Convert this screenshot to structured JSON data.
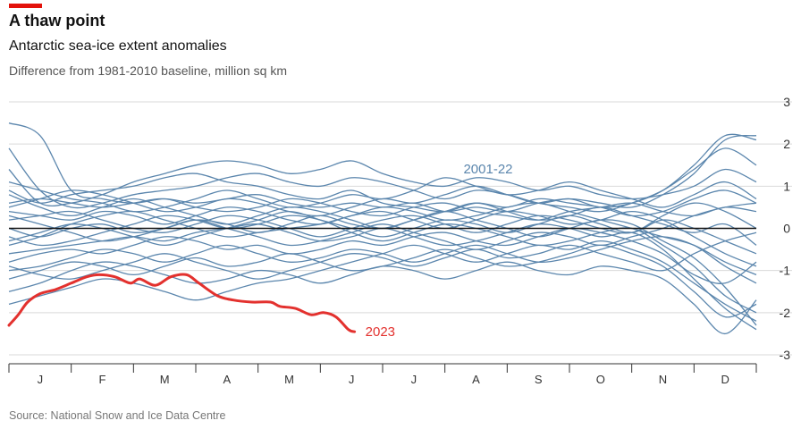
{
  "header": {
    "title": "A thaw point",
    "subtitle": "Antarctic sea-ice extent anomalies",
    "units": "Difference from 1981-2010 baseline, million sq km"
  },
  "footer": {
    "source": "Source: National Snow and Ice Data Centre"
  },
  "colors": {
    "accent": "#e3120b",
    "history": "#5b86ad",
    "current": "#e3312e",
    "zero_line": "#121212",
    "grid": "#d9d9d9"
  },
  "chart_data": {
    "type": "line",
    "title": "A thaw point",
    "subtitle": "Antarctic sea-ice extent anomalies",
    "ylabel": "Difference from 1981-2010 baseline, million sq km",
    "ylim": [
      -3,
      3
    ],
    "yticks": [
      -3,
      -2,
      -1,
      0,
      1,
      2,
      3
    ],
    "ytick_labels": [
      "-3",
      "-2",
      "-1",
      "0",
      "1",
      "2",
      "3"
    ],
    "xlim": [
      0,
      12
    ],
    "months": [
      "J",
      "F",
      "M",
      "A",
      "M",
      "J",
      "J",
      "A",
      "S",
      "O",
      "N",
      "D"
    ],
    "grid": true,
    "series": [
      {
        "name": "2023",
        "x": [
          0,
          0.15,
          0.3,
          0.5,
          0.75,
          1.0,
          1.25,
          1.45,
          1.7,
          1.95,
          2.1,
          2.35,
          2.6,
          2.85,
          3.05,
          3.35,
          3.6,
          3.9,
          4.2,
          4.35,
          4.6,
          4.85,
          5.05,
          5.25,
          5.45,
          5.55
        ],
        "y": [
          -2.3,
          -2.05,
          -1.75,
          -1.55,
          -1.45,
          -1.3,
          -1.15,
          -1.1,
          -1.15,
          -1.3,
          -1.2,
          -1.35,
          -1.15,
          -1.1,
          -1.3,
          -1.6,
          -1.7,
          -1.75,
          -1.75,
          -1.85,
          -1.9,
          -2.05,
          -2.0,
          -2.1,
          -2.4,
          -2.45
        ]
      },
      {
        "name": "2001-22",
        "years": [
          2001,
          2002,
          2003,
          2004,
          2005,
          2006,
          2007,
          2008,
          2009,
          2010,
          2011,
          2012,
          2013,
          2014,
          2015,
          2016,
          2017,
          2018,
          2019,
          2020,
          2021,
          2022
        ],
        "x": [
          0,
          0.5,
          1,
          1.5,
          2,
          2.5,
          3,
          3.5,
          4,
          4.5,
          5,
          5.5,
          6,
          6.5,
          7,
          7.5,
          8,
          8.5,
          9,
          9.5,
          10,
          10.5,
          11,
          11.5,
          12
        ],
        "y": [
          [
            2.5,
            2.2,
            0.9,
            0.7,
            0.6,
            0.7,
            0.6,
            0.7,
            0.8,
            0.6,
            0.5,
            0.6,
            0.5,
            0.6,
            0.4,
            0.5,
            0.4,
            0.6,
            0.7,
            0.6,
            0.5,
            0.8,
            1.3,
            2.1,
            2.2
          ],
          [
            1.9,
            0.9,
            0.5,
            0.6,
            0.8,
            0.9,
            1.0,
            1.2,
            1.3,
            1.1,
            1.0,
            1.2,
            1.1,
            0.9,
            0.7,
            0.9,
            0.8,
            0.6,
            0.5,
            0.4,
            0.6,
            0.9,
            1.4,
            1.9,
            1.5
          ],
          [
            1.4,
            0.6,
            0.6,
            0.8,
            1.1,
            1.3,
            1.5,
            1.6,
            1.5,
            1.3,
            1.4,
            1.6,
            1.3,
            1.1,
            1.0,
            1.2,
            1.1,
            0.9,
            1.0,
            0.8,
            0.7,
            0.8,
            1.0,
            1.4,
            1.1
          ],
          [
            0.9,
            0.6,
            0.8,
            0.9,
            1.0,
            1.2,
            1.3,
            1.1,
            1.0,
            0.8,
            0.7,
            0.9,
            0.6,
            0.5,
            0.4,
            0.6,
            0.5,
            0.7,
            0.6,
            0.5,
            0.3,
            0.4,
            0.7,
            0.9,
            0.6
          ],
          [
            0.6,
            0.7,
            0.6,
            0.5,
            0.6,
            0.7,
            0.5,
            0.4,
            0.5,
            0.7,
            0.6,
            0.4,
            0.3,
            0.5,
            0.6,
            0.4,
            0.3,
            0.2,
            0.4,
            0.5,
            0.6,
            0.4,
            0.3,
            0.5,
            0.4
          ],
          [
            0.4,
            0.3,
            0.2,
            0.4,
            0.3,
            0.1,
            0.3,
            0.5,
            0.4,
            0.2,
            0.1,
            0.3,
            0.4,
            0.2,
            0.0,
            0.2,
            0.4,
            0.3,
            0.1,
            0.2,
            0.4,
            0.2,
            -0.2,
            -0.6,
            -0.9
          ],
          [
            0.2,
            0.3,
            0.4,
            0.2,
            0.0,
            -0.1,
            0.1,
            0.3,
            0.2,
            0.0,
            -0.2,
            0.0,
            0.2,
            0.3,
            0.1,
            -0.1,
            0.1,
            0.3,
            0.2,
            0.0,
            -0.1,
            0.3,
            0.6,
            0.4,
            0.0
          ],
          [
            0.0,
            -0.2,
            0.0,
            0.1,
            -0.1,
            0.0,
            0.2,
            0.1,
            -0.1,
            0.1,
            0.3,
            0.1,
            0.0,
            0.2,
            0.4,
            0.2,
            0.0,
            -0.2,
            0.0,
            0.2,
            0.1,
            -0.3,
            -0.7,
            -1.4,
            -2.3
          ],
          [
            -0.2,
            -0.4,
            -0.3,
            -0.1,
            0.1,
            0.3,
            0.2,
            0.0,
            0.1,
            0.3,
            0.2,
            -0.1,
            -0.3,
            -0.1,
            0.1,
            0.0,
            -0.2,
            -0.4,
            -0.3,
            -0.1,
            0.0,
            -0.4,
            -0.9,
            -1.6,
            -2.0
          ],
          [
            -0.4,
            -0.2,
            0.1,
            0.3,
            0.4,
            0.2,
            0.0,
            -0.2,
            -0.1,
            0.0,
            0.1,
            0.3,
            0.5,
            0.4,
            0.2,
            0.3,
            0.5,
            0.6,
            0.4,
            0.2,
            0.0,
            -0.2,
            -0.4,
            -0.8,
            -1.1
          ],
          [
            -0.6,
            -0.5,
            -0.4,
            -0.3,
            -0.2,
            -0.3,
            -0.1,
            0.0,
            0.1,
            -0.1,
            -0.3,
            -0.2,
            0.0,
            -0.2,
            -0.4,
            -0.3,
            -0.1,
            0.1,
            0.0,
            -0.2,
            -0.1,
            -0.5,
            -1.2,
            -1.9,
            -2.4
          ],
          [
            -0.8,
            -0.6,
            -0.5,
            -0.6,
            -0.4,
            -0.2,
            -0.3,
            -0.5,
            -0.4,
            -0.6,
            -0.5,
            -0.3,
            -0.4,
            -0.2,
            -0.1,
            -0.3,
            -0.4,
            -0.2,
            0.0,
            -0.1,
            -0.3,
            -0.6,
            -1.1,
            -1.3,
            -0.8
          ],
          [
            -1.0,
            -0.9,
            -0.7,
            -0.5,
            -0.6,
            -0.8,
            -0.6,
            -0.4,
            -0.6,
            -0.8,
            -0.7,
            -0.5,
            -0.6,
            -0.8,
            -0.6,
            -0.4,
            -0.6,
            -0.8,
            -0.7,
            -0.5,
            -0.3,
            -0.2,
            -0.4,
            -0.9,
            -1.3
          ],
          [
            -1.2,
            -1.0,
            -0.8,
            -0.9,
            -1.1,
            -0.9,
            -0.7,
            -0.9,
            -0.8,
            -0.6,
            -0.8,
            -1.0,
            -0.9,
            -0.7,
            -0.5,
            -0.7,
            -0.9,
            -0.8,
            -0.6,
            -0.4,
            -0.6,
            -0.9,
            -1.5,
            -2.1,
            -1.8
          ],
          [
            -1.5,
            -1.3,
            -1.0,
            -0.8,
            -0.9,
            -1.1,
            -1.3,
            -1.2,
            -1.0,
            -1.1,
            -1.3,
            -1.1,
            -0.9,
            -1.0,
            -1.2,
            -1.0,
            -0.8,
            -1.0,
            -1.1,
            -0.9,
            -1.0,
            -1.2,
            -1.8,
            -2.5,
            -1.7
          ],
          [
            -1.8,
            -1.6,
            -1.4,
            -1.2,
            -1.3,
            -1.5,
            -1.7,
            -1.5,
            -1.3,
            -1.2,
            -1.0,
            -0.8,
            -0.6,
            -0.4,
            -0.6,
            -0.8,
            -0.6,
            -0.4,
            -0.5,
            -0.3,
            -0.5,
            -0.8,
            -1.3,
            -1.8,
            -2.2
          ],
          [
            0.8,
            0.5,
            0.3,
            0.5,
            0.7,
            0.5,
            0.3,
            0.1,
            0.3,
            0.5,
            0.4,
            0.2,
            0.0,
            0.2,
            0.4,
            0.6,
            0.4,
            0.2,
            0.3,
            0.5,
            0.3,
            0.1,
            -0.1,
            0.1,
            -0.4
          ],
          [
            0.3,
            0.1,
            -0.1,
            -0.3,
            -0.2,
            0.0,
            0.2,
            0.0,
            -0.2,
            -0.4,
            -0.3,
            -0.1,
            0.1,
            -0.1,
            -0.3,
            -0.5,
            -0.3,
            -0.1,
            -0.2,
            -0.4,
            -0.2,
            0.0,
            0.3,
            0.5,
            0.6
          ],
          [
            1.1,
            0.9,
            0.7,
            0.6,
            0.4,
            0.5,
            0.7,
            0.9,
            0.7,
            0.5,
            0.6,
            0.8,
            0.7,
            0.9,
            1.2,
            1.0,
            0.8,
            0.9,
            1.1,
            0.9,
            0.7,
            0.5,
            0.8,
            1.1,
            0.7
          ],
          [
            -0.3,
            -0.1,
            0.1,
            0.0,
            -0.2,
            -0.4,
            -0.2,
            0.0,
            0.2,
            0.4,
            0.2,
            0.0,
            -0.2,
            0.0,
            0.2,
            0.1,
            -0.1,
            0.1,
            0.3,
            0.1,
            -0.1,
            0.2,
            0.0,
            -0.3,
            -0.6
          ],
          [
            -0.9,
            -1.1,
            -1.2,
            -1.0,
            -0.8,
            -0.6,
            -0.8,
            -1.0,
            -1.2,
            -1.0,
            -0.8,
            -0.6,
            -0.7,
            -0.9,
            -0.7,
            -0.5,
            -0.7,
            -0.6,
            -0.4,
            -0.6,
            -0.8,
            -1.0,
            -0.6,
            -0.3,
            -0.1
          ],
          [
            0.5,
            0.7,
            0.9,
            0.8,
            0.6,
            0.4,
            0.5,
            0.7,
            0.6,
            0.4,
            0.3,
            0.5,
            0.7,
            0.6,
            0.8,
            1.0,
            0.8,
            0.6,
            0.7,
            0.5,
            0.6,
            0.9,
            1.5,
            2.2,
            2.1
          ]
        ]
      }
    ]
  }
}
